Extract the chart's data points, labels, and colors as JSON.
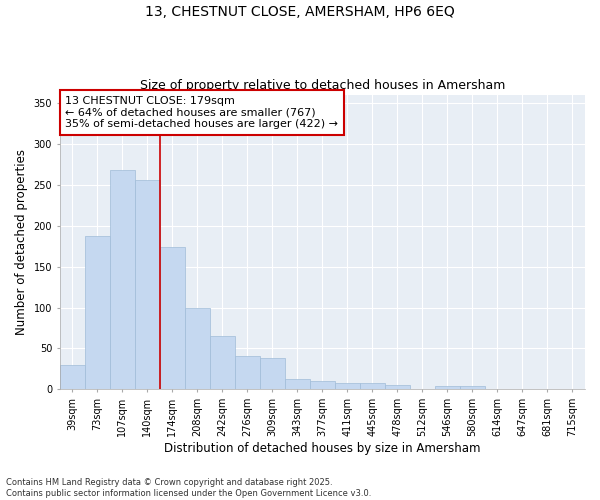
{
  "title_line1": "13, CHESTNUT CLOSE, AMERSHAM, HP6 6EQ",
  "title_line2": "Size of property relative to detached houses in Amersham",
  "xlabel": "Distribution of detached houses by size in Amersham",
  "ylabel": "Number of detached properties",
  "categories": [
    "39sqm",
    "73sqm",
    "107sqm",
    "140sqm",
    "174sqm",
    "208sqm",
    "242sqm",
    "276sqm",
    "309sqm",
    "343sqm",
    "377sqm",
    "411sqm",
    "445sqm",
    "478sqm",
    "512sqm",
    "546sqm",
    "580sqm",
    "614sqm",
    "647sqm",
    "681sqm",
    "715sqm"
  ],
  "values": [
    30,
    187,
    268,
    256,
    174,
    100,
    65,
    41,
    38,
    13,
    10,
    8,
    8,
    5,
    1,
    4,
    4,
    1,
    1,
    1,
    1
  ],
  "bar_color": "#c5d8f0",
  "bar_edge_color": "#a0bcd8",
  "vline_x_index": 3.5,
  "vline_color": "#cc0000",
  "annotation_text": "13 CHESTNUT CLOSE: 179sqm\n← 64% of detached houses are smaller (767)\n35% of semi-detached houses are larger (422) →",
  "annotation_box_color": "#ffffff",
  "annotation_box_edge_color": "#cc0000",
  "ylim": [
    0,
    360
  ],
  "yticks": [
    0,
    50,
    100,
    150,
    200,
    250,
    300,
    350
  ],
  "background_color": "#ffffff",
  "plot_bg_color": "#e8eef5",
  "grid_color": "#ffffff",
  "footer_text": "Contains HM Land Registry data © Crown copyright and database right 2025.\nContains public sector information licensed under the Open Government Licence v3.0.",
  "title_fontsize": 10,
  "subtitle_fontsize": 9,
  "axis_label_fontsize": 8.5,
  "tick_fontsize": 7,
  "annotation_fontsize": 8,
  "footer_fontsize": 6
}
